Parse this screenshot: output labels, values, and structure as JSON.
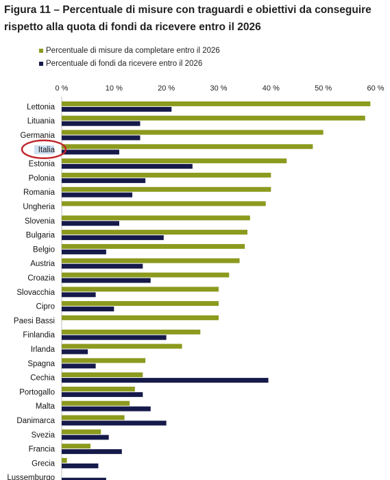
{
  "title": "Figura 11 – Percentuale di misure con traguardi e obiettivi da conseguire rispetto alla quota di fondi da ricevere entro il 2026",
  "chart_data": {
    "type": "bar",
    "orientation": "horizontal",
    "categories": [
      "Lettonia",
      "Lituania",
      "Germania",
      "Italia",
      "Estonia",
      "Polonia",
      "Romania",
      "Ungheria",
      "Slovenia",
      "Bulgaria",
      "Belgio",
      "Austria",
      "Croazia",
      "Slovacchia",
      "Cipro",
      "Paesi Bassi",
      "Finlandia",
      "Irlanda",
      "Spagna",
      "Cechia",
      "Portogallo",
      "Malta",
      "Danimarca",
      "Svezia",
      "Francia",
      "Grecia",
      "Lussemburgo"
    ],
    "series": [
      {
        "name": "Percentuale di misure da completare entro il 2026",
        "color": "#8c9a1e",
        "values": [
          59,
          58,
          50,
          48,
          43,
          40,
          40,
          39,
          36,
          35.5,
          35,
          34,
          32,
          30,
          30,
          30,
          26.5,
          23,
          16,
          15.5,
          14,
          13,
          12,
          7.5,
          5.5,
          1,
          0
        ]
      },
      {
        "name": "Percentuale di fondi da ricevere entro il 2026",
        "color": "#161a4a",
        "values": [
          21,
          15,
          15,
          11,
          25,
          16,
          13.5,
          0,
          11,
          19.5,
          8.5,
          15.5,
          17,
          6.5,
          10,
          0,
          20,
          5,
          6.5,
          39.5,
          15.5,
          17,
          20,
          9,
          11.5,
          7,
          8.5
        ]
      }
    ],
    "x_ticks": [
      "0 %",
      "10 %",
      "20 %",
      "30 %",
      "40 %",
      "50 %",
      "60 %"
    ],
    "xlim": [
      0,
      60
    ],
    "legend_position": "top-left",
    "highlight": {
      "category": "Italia",
      "style": "red ellipse",
      "color": "#c0262d"
    }
  }
}
